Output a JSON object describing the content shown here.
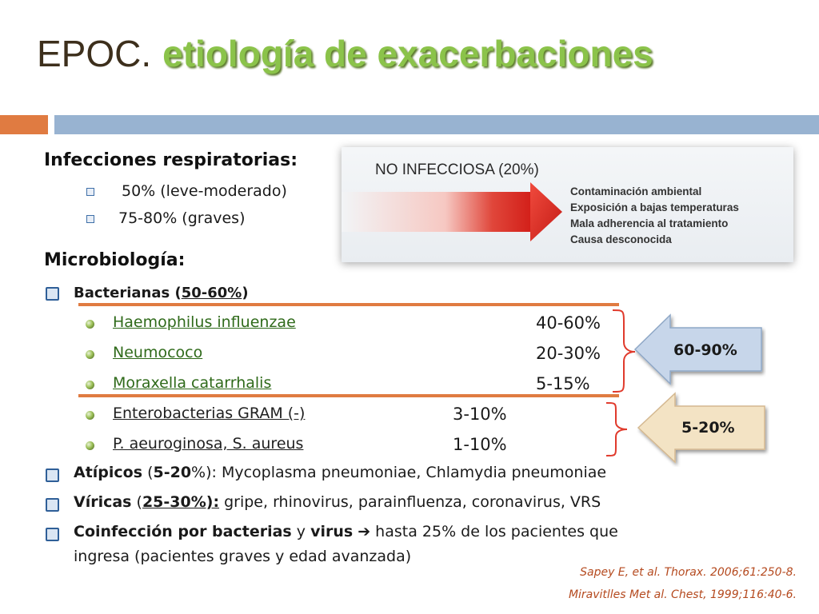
{
  "title": {
    "part1": "EPOC.",
    "part2": "etiología de exacerbaciones"
  },
  "infecciones": {
    "heading": "Infecciones respiratorias:",
    "items": [
      "50% (leve-moderado)",
      "75-80% (graves)"
    ]
  },
  "panel": {
    "title": "NO INFECCIOSA (20%)",
    "items": [
      "Contaminación ambiental",
      "Exposición a bajas temperaturas",
      "Mala adherencia al tratamiento",
      "Causa desconocida"
    ]
  },
  "micro": {
    "heading": "Microbiología:",
    "bacterianas": {
      "label": "Bacterianas (",
      "pct": "50-60%",
      "close": ")"
    },
    "organisms": [
      {
        "name": "Haemophilus influenzae",
        "pct": "40-60%"
      },
      {
        "name": "Neumococo",
        "pct": "20-30%"
      },
      {
        "name": "Moraxella catarrhalis",
        "pct": "5-15%"
      },
      {
        "name": "Enterobacterias GRAM (-)",
        "pct": "3-10%"
      },
      {
        "name": "P. aeuroginosa, S. aureus",
        "pct": "1-10%"
      }
    ],
    "atipicos": {
      "label": "Atípicos",
      "open": " (",
      "pct": "5-20",
      "rest": "%): Mycoplasma pneumoniae, Chlamydia pneumoniae"
    },
    "viricas": {
      "label": "Víricas",
      "open": " (",
      "pct": "25-30%):",
      "rest": " gripe, rhinovirus, parainfluenza, coronavirus, VRS"
    },
    "coinfeccion": {
      "label1": "Coinfección por bacterias",
      "mid": " y ",
      "label2": "virus",
      "arrow": "➔",
      "rest": " hasta 25% de los pacientes que",
      "line2": "ingresa (pacientes graves y edad avanzada)"
    }
  },
  "callouts": [
    {
      "label": "60-90%",
      "color": "#c7d6ea"
    },
    {
      "label": "5-20%",
      "color": "#f3e3c4"
    }
  ],
  "citations": [
    "Sapey E, et al. Thorax. 2006;61:250-8.",
    "Miravitlles Met al. Chest, 1999;116:40-6."
  ],
  "colors": {
    "accent_orange": "#e07b41",
    "accent_blue": "#98b3d1",
    "title_green": "#8bc34a",
    "citation": "#b54a1f"
  }
}
